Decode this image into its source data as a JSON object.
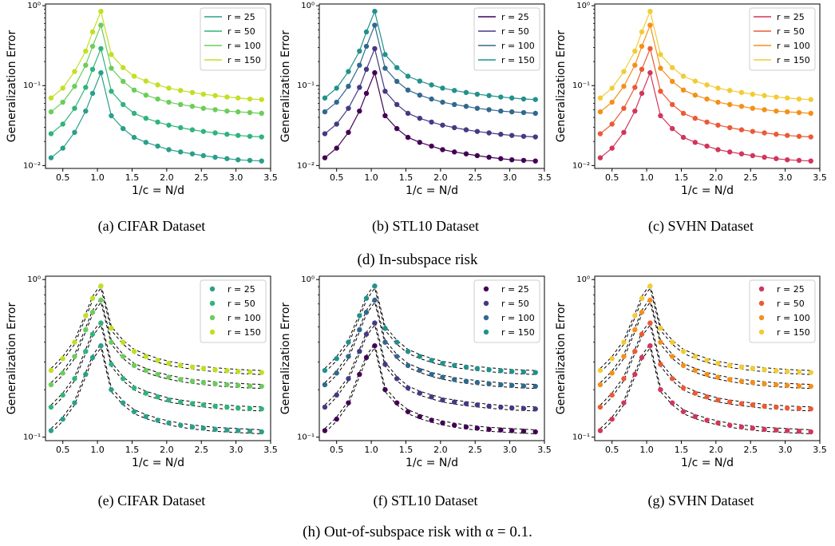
{
  "figure": {
    "group_captions": [
      "(d) In-subspace risk",
      "(h) Out-of-subspace risk with α = 0.1."
    ]
  },
  "chart_data": [
    {
      "id": "a",
      "type": "line",
      "caption": "(a) CIFAR Dataset",
      "xlabel": "1/c = N/d",
      "ylabel": "Generalization Error",
      "xlim": [
        0.25,
        3.5
      ],
      "ylim": [
        0.0092,
        1.05
      ],
      "yscale": "log",
      "xticks": [
        0.5,
        1.0,
        1.5,
        2.0,
        2.5,
        3.0,
        3.5
      ],
      "xtick_labels": [
        "0.5",
        "1.0",
        "1.5",
        "2.0",
        "2.5",
        "3.0",
        "3.5"
      ],
      "yticks": [
        0.01,
        0.1,
        1
      ],
      "ytick_labels": [
        "10⁻²",
        "10⁻¹",
        "10⁰"
      ],
      "markers": "dots-with-lines",
      "dashed_theory": false,
      "legend": "top-right",
      "x": [
        0.33,
        0.5,
        0.67,
        0.83,
        0.93,
        1.05,
        1.2,
        1.37,
        1.53,
        1.7,
        1.87,
        2.03,
        2.2,
        2.37,
        2.53,
        2.7,
        2.87,
        3.03,
        3.2,
        3.37
      ],
      "series": [
        {
          "name": "r = 25",
          "color": "#2a9f8a",
          "values": [
            0.0125,
            0.0165,
            0.026,
            0.048,
            0.08,
            0.145,
            0.042,
            0.029,
            0.0225,
            0.0195,
            0.0175,
            0.0158,
            0.0148,
            0.014,
            0.0133,
            0.0127,
            0.0122,
            0.0118,
            0.0116,
            0.0114
          ]
        },
        {
          "name": "r = 50",
          "color": "#2fb47c",
          "values": [
            0.025,
            0.033,
            0.052,
            0.095,
            0.16,
            0.29,
            0.085,
            0.058,
            0.045,
            0.039,
            0.035,
            0.032,
            0.0298,
            0.028,
            0.0267,
            0.0256,
            0.0246,
            0.0238,
            0.0232,
            0.0228
          ]
        },
        {
          "name": "r = 100",
          "color": "#6ccd5a",
          "values": [
            0.047,
            0.062,
            0.098,
            0.18,
            0.31,
            0.57,
            0.165,
            0.113,
            0.088,
            0.076,
            0.068,
            0.062,
            0.058,
            0.055,
            0.052,
            0.05,
            0.048,
            0.047,
            0.046,
            0.045
          ]
        },
        {
          "name": "r = 150",
          "color": "#c2df23",
          "values": [
            0.07,
            0.093,
            0.15,
            0.27,
            0.47,
            0.85,
            0.245,
            0.168,
            0.131,
            0.114,
            0.102,
            0.093,
            0.087,
            0.082,
            0.078,
            0.075,
            0.072,
            0.07,
            0.068,
            0.067
          ]
        }
      ]
    },
    {
      "id": "b",
      "type": "line",
      "caption": "(b) STL10 Dataset",
      "xlabel": "1/c = N/d",
      "ylabel": "Generalization Error",
      "xlim": [
        0.25,
        3.5
      ],
      "ylim": [
        0.0092,
        1.05
      ],
      "yscale": "log",
      "xticks": [
        0.5,
        1.0,
        1.5,
        2.0,
        2.5,
        3.0,
        3.5
      ],
      "xtick_labels": [
        "0.5",
        "1.0",
        "1.5",
        "2.0",
        "2.5",
        "3.0",
        "3.5"
      ],
      "yticks": [
        0.01,
        0.1,
        1
      ],
      "ytick_labels": [
        "10⁻²",
        "10⁻¹",
        "10⁰"
      ],
      "markers": "dots-with-lines",
      "dashed_theory": false,
      "legend": "top-right",
      "x": [
        0.33,
        0.5,
        0.67,
        0.83,
        0.93,
        1.05,
        1.2,
        1.37,
        1.53,
        1.7,
        1.87,
        2.03,
        2.2,
        2.37,
        2.53,
        2.7,
        2.87,
        3.03,
        3.2,
        3.37
      ],
      "series": [
        {
          "name": "r = 25",
          "color": "#440154",
          "values": [
            0.0125,
            0.0165,
            0.026,
            0.048,
            0.08,
            0.145,
            0.042,
            0.029,
            0.0225,
            0.0195,
            0.0175,
            0.0158,
            0.0148,
            0.014,
            0.0133,
            0.0127,
            0.0122,
            0.0118,
            0.0116,
            0.0114
          ]
        },
        {
          "name": "r = 50",
          "color": "#443983",
          "values": [
            0.025,
            0.033,
            0.052,
            0.095,
            0.16,
            0.29,
            0.085,
            0.058,
            0.045,
            0.039,
            0.035,
            0.032,
            0.0298,
            0.028,
            0.0267,
            0.0256,
            0.0246,
            0.0238,
            0.0232,
            0.0228
          ]
        },
        {
          "name": "r = 100",
          "color": "#31688e",
          "values": [
            0.047,
            0.062,
            0.098,
            0.18,
            0.31,
            0.57,
            0.165,
            0.113,
            0.088,
            0.076,
            0.068,
            0.062,
            0.058,
            0.055,
            0.052,
            0.05,
            0.048,
            0.047,
            0.046,
            0.045
          ]
        },
        {
          "name": "r = 150",
          "color": "#21918c",
          "values": [
            0.07,
            0.093,
            0.15,
            0.27,
            0.47,
            0.85,
            0.245,
            0.168,
            0.131,
            0.114,
            0.102,
            0.093,
            0.087,
            0.082,
            0.078,
            0.075,
            0.072,
            0.07,
            0.068,
            0.067
          ]
        }
      ]
    },
    {
      "id": "c",
      "type": "line",
      "caption": "(c) SVHN Dataset",
      "xlabel": "1/c = N/d",
      "ylabel": "Generalization Error",
      "xlim": [
        0.25,
        3.5
      ],
      "ylim": [
        0.0092,
        1.05
      ],
      "yscale": "log",
      "xticks": [
        0.5,
        1.0,
        1.5,
        2.0,
        2.5,
        3.0,
        3.5
      ],
      "xtick_labels": [
        "0.5",
        "1.0",
        "1.5",
        "2.0",
        "2.5",
        "3.0",
        "3.5"
      ],
      "yticks": [
        0.01,
        0.1,
        1
      ],
      "ytick_labels": [
        "10⁻²",
        "10⁻¹",
        "10⁰"
      ],
      "markers": "dots-with-lines",
      "dashed_theory": false,
      "legend": "top-right",
      "x": [
        0.33,
        0.5,
        0.67,
        0.83,
        0.93,
        1.05,
        1.2,
        1.37,
        1.53,
        1.7,
        1.87,
        2.03,
        2.2,
        2.37,
        2.53,
        2.7,
        2.87,
        3.03,
        3.2,
        3.37
      ],
      "series": [
        {
          "name": "r = 25",
          "color": "#d1365b",
          "values": [
            0.0125,
            0.0165,
            0.026,
            0.048,
            0.08,
            0.145,
            0.042,
            0.029,
            0.0225,
            0.0195,
            0.0175,
            0.0158,
            0.0148,
            0.014,
            0.0133,
            0.0127,
            0.0122,
            0.0118,
            0.0116,
            0.0114
          ]
        },
        {
          "name": "r = 50",
          "color": "#eb5a36",
          "values": [
            0.025,
            0.033,
            0.052,
            0.095,
            0.16,
            0.29,
            0.085,
            0.058,
            0.045,
            0.039,
            0.035,
            0.032,
            0.0298,
            0.028,
            0.0267,
            0.0256,
            0.0246,
            0.0238,
            0.0232,
            0.0228
          ]
        },
        {
          "name": "r = 100",
          "color": "#f4901a",
          "values": [
            0.047,
            0.062,
            0.098,
            0.18,
            0.31,
            0.57,
            0.165,
            0.113,
            0.088,
            0.076,
            0.068,
            0.062,
            0.058,
            0.055,
            0.052,
            0.05,
            0.048,
            0.047,
            0.046,
            0.045
          ]
        },
        {
          "name": "r = 150",
          "color": "#f2cc35",
          "values": [
            0.07,
            0.093,
            0.15,
            0.27,
            0.47,
            0.85,
            0.245,
            0.168,
            0.131,
            0.114,
            0.102,
            0.093,
            0.087,
            0.082,
            0.078,
            0.075,
            0.072,
            0.07,
            0.068,
            0.067
          ]
        }
      ]
    },
    {
      "id": "e",
      "type": "scatter",
      "caption": "(e) CIFAR Dataset",
      "xlabel": "1/c = N/d",
      "ylabel": "Generalization Error",
      "xlim": [
        0.25,
        3.5
      ],
      "ylim": [
        0.095,
        1.05
      ],
      "yscale": "log",
      "xticks": [
        0.5,
        1.0,
        1.5,
        2.0,
        2.5,
        3.0,
        3.5
      ],
      "xtick_labels": [
        "0.5",
        "1.0",
        "1.5",
        "2.0",
        "2.5",
        "3.0",
        "3.5"
      ],
      "yticks": [
        0.1,
        1
      ],
      "ytick_labels": [
        "10⁻¹",
        "10⁰"
      ],
      "markers": "dots",
      "dashed_theory": true,
      "legend": "top-right",
      "x": [
        0.33,
        0.5,
        0.67,
        0.83,
        0.93,
        1.05,
        1.2,
        1.37,
        1.53,
        1.7,
        1.87,
        2.03,
        2.2,
        2.37,
        2.53,
        2.7,
        2.87,
        3.03,
        3.2,
        3.37
      ],
      "series": [
        {
          "name": "r = 25",
          "color": "#2a9f8a",
          "values": [
            0.11,
            0.13,
            0.165,
            0.25,
            0.32,
            0.38,
            0.2,
            0.165,
            0.145,
            0.135,
            0.128,
            0.123,
            0.119,
            0.116,
            0.114,
            0.112,
            0.111,
            0.11,
            0.109,
            0.108
          ]
        },
        {
          "name": "r = 50",
          "color": "#2fb47c",
          "values": [
            0.155,
            0.185,
            0.235,
            0.35,
            0.45,
            0.53,
            0.29,
            0.235,
            0.205,
            0.19,
            0.18,
            0.172,
            0.167,
            0.163,
            0.16,
            0.157,
            0.155,
            0.153,
            0.152,
            0.151
          ]
        },
        {
          "name": "r = 100",
          "color": "#6ccd5a",
          "values": [
            0.215,
            0.255,
            0.325,
            0.48,
            0.62,
            0.74,
            0.4,
            0.325,
            0.285,
            0.265,
            0.25,
            0.24,
            0.232,
            0.226,
            0.222,
            0.218,
            0.215,
            0.213,
            0.211,
            0.21
          ]
        },
        {
          "name": "r = 150",
          "color": "#c2df23",
          "values": [
            0.265,
            0.315,
            0.4,
            0.59,
            0.76,
            0.91,
            0.49,
            0.4,
            0.35,
            0.325,
            0.307,
            0.294,
            0.285,
            0.278,
            0.272,
            0.268,
            0.264,
            0.261,
            0.259,
            0.257
          ]
        }
      ]
    },
    {
      "id": "f",
      "type": "scatter",
      "caption": "(f) STL10 Dataset",
      "xlabel": "1/c = N/d",
      "ylabel": "Generalization Error",
      "xlim": [
        0.25,
        3.5
      ],
      "ylim": [
        0.095,
        1.05
      ],
      "yscale": "log",
      "xticks": [
        0.5,
        1.0,
        1.5,
        2.0,
        2.5,
        3.0,
        3.5
      ],
      "xtick_labels": [
        "0.5",
        "1.0",
        "1.5",
        "2.0",
        "2.5",
        "3.0",
        "3.5"
      ],
      "yticks": [
        0.1,
        1
      ],
      "ytick_labels": [
        "10⁻¹",
        "10⁰"
      ],
      "markers": "dots",
      "dashed_theory": true,
      "legend": "top-right",
      "x": [
        0.33,
        0.5,
        0.67,
        0.83,
        0.93,
        1.05,
        1.2,
        1.37,
        1.53,
        1.7,
        1.87,
        2.03,
        2.2,
        2.37,
        2.53,
        2.7,
        2.87,
        3.03,
        3.2,
        3.37
      ],
      "series": [
        {
          "name": "r = 25",
          "color": "#440154",
          "values": [
            0.11,
            0.13,
            0.165,
            0.25,
            0.32,
            0.38,
            0.2,
            0.165,
            0.145,
            0.135,
            0.128,
            0.123,
            0.119,
            0.116,
            0.114,
            0.112,
            0.111,
            0.11,
            0.109,
            0.108
          ]
        },
        {
          "name": "r = 50",
          "color": "#443983",
          "values": [
            0.155,
            0.185,
            0.235,
            0.35,
            0.45,
            0.53,
            0.29,
            0.235,
            0.205,
            0.19,
            0.18,
            0.172,
            0.167,
            0.163,
            0.16,
            0.157,
            0.155,
            0.153,
            0.152,
            0.151
          ]
        },
        {
          "name": "r = 100",
          "color": "#31688e",
          "values": [
            0.215,
            0.255,
            0.325,
            0.48,
            0.62,
            0.74,
            0.4,
            0.325,
            0.285,
            0.265,
            0.25,
            0.24,
            0.232,
            0.226,
            0.222,
            0.218,
            0.215,
            0.213,
            0.211,
            0.21
          ]
        },
        {
          "name": "r = 150",
          "color": "#21918c",
          "values": [
            0.265,
            0.315,
            0.4,
            0.59,
            0.76,
            0.91,
            0.49,
            0.4,
            0.35,
            0.325,
            0.307,
            0.294,
            0.285,
            0.278,
            0.272,
            0.268,
            0.264,
            0.261,
            0.259,
            0.257
          ]
        }
      ]
    },
    {
      "id": "g",
      "type": "scatter",
      "caption": "(g) SVHN Dataset",
      "xlabel": "1/c = N/d",
      "ylabel": "Generalization Error",
      "xlim": [
        0.25,
        3.5
      ],
      "ylim": [
        0.095,
        1.05
      ],
      "yscale": "log",
      "xticks": [
        0.5,
        1.0,
        1.5,
        2.0,
        2.5,
        3.0,
        3.5
      ],
      "xtick_labels": [
        "0.5",
        "1.0",
        "1.5",
        "2.0",
        "2.5",
        "3.0",
        "3.5"
      ],
      "yticks": [
        0.1,
        1
      ],
      "ytick_labels": [
        "10⁻¹",
        "10⁰"
      ],
      "markers": "dots",
      "dashed_theory": true,
      "legend": "top-right",
      "x": [
        0.33,
        0.5,
        0.67,
        0.83,
        0.93,
        1.05,
        1.2,
        1.37,
        1.53,
        1.7,
        1.87,
        2.03,
        2.2,
        2.37,
        2.53,
        2.7,
        2.87,
        3.03,
        3.2,
        3.37
      ],
      "series": [
        {
          "name": "r = 25",
          "color": "#d1365b",
          "values": [
            0.11,
            0.13,
            0.165,
            0.25,
            0.32,
            0.38,
            0.2,
            0.165,
            0.145,
            0.135,
            0.128,
            0.123,
            0.119,
            0.116,
            0.114,
            0.112,
            0.111,
            0.11,
            0.109,
            0.108
          ]
        },
        {
          "name": "r = 50",
          "color": "#eb5a36",
          "values": [
            0.155,
            0.185,
            0.235,
            0.35,
            0.45,
            0.53,
            0.29,
            0.235,
            0.205,
            0.19,
            0.18,
            0.172,
            0.167,
            0.163,
            0.16,
            0.157,
            0.155,
            0.153,
            0.152,
            0.151
          ]
        },
        {
          "name": "r = 100",
          "color": "#f4901a",
          "values": [
            0.215,
            0.255,
            0.325,
            0.48,
            0.62,
            0.74,
            0.4,
            0.325,
            0.285,
            0.265,
            0.25,
            0.24,
            0.232,
            0.226,
            0.222,
            0.218,
            0.215,
            0.213,
            0.211,
            0.21
          ]
        },
        {
          "name": "r = 150",
          "color": "#f2cc35",
          "values": [
            0.265,
            0.315,
            0.4,
            0.59,
            0.76,
            0.91,
            0.49,
            0.4,
            0.35,
            0.325,
            0.307,
            0.294,
            0.285,
            0.278,
            0.272,
            0.268,
            0.264,
            0.261,
            0.259,
            0.257
          ]
        }
      ]
    }
  ]
}
